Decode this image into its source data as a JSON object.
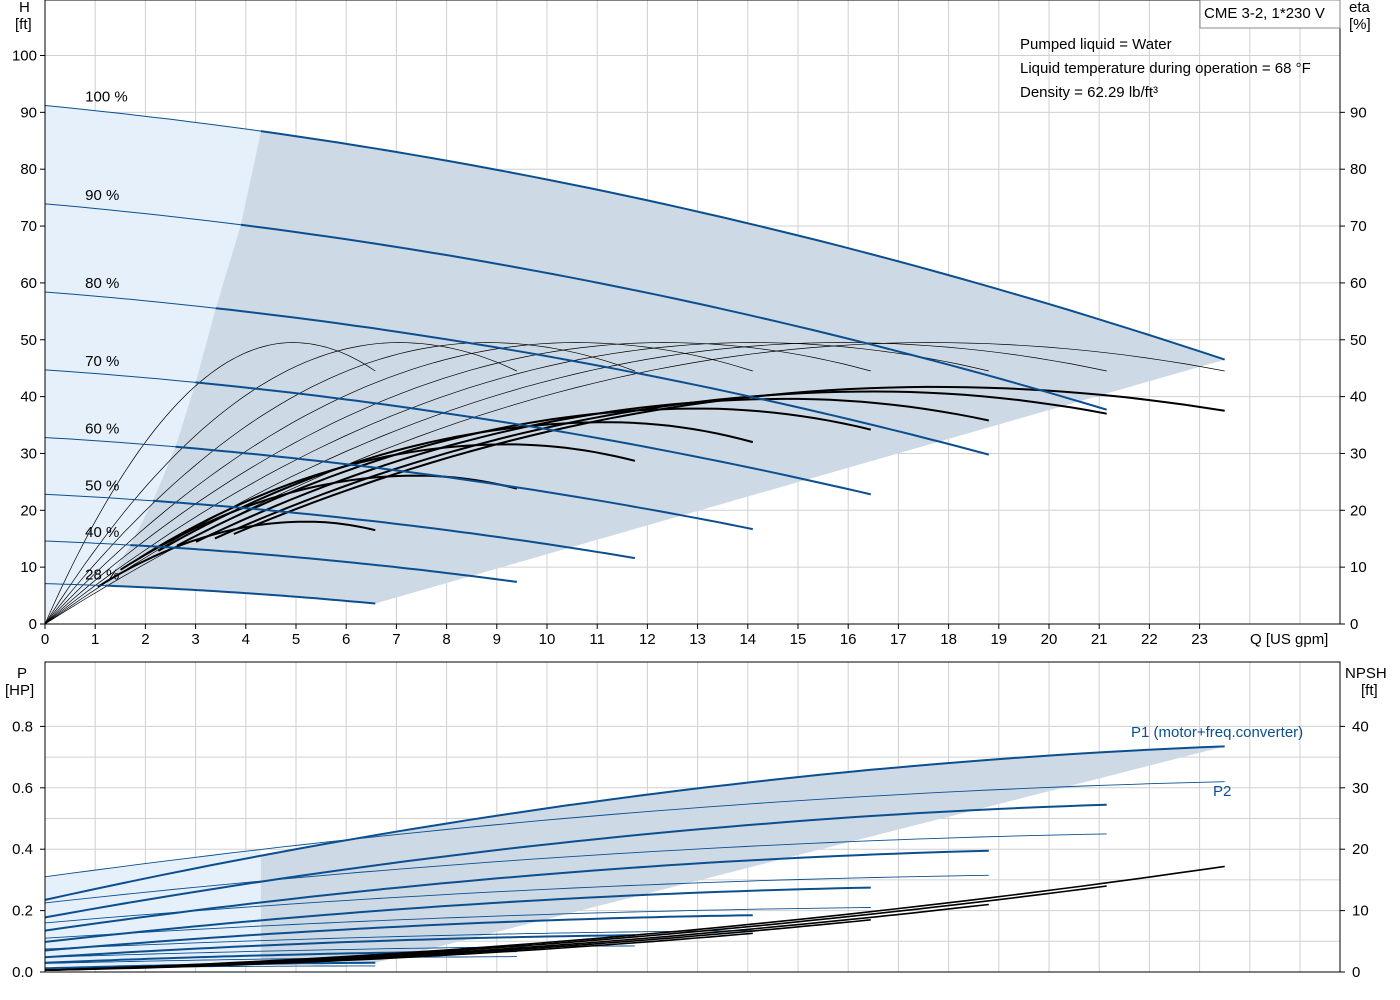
{
  "title_box": "CME 3-2, 1*230 V",
  "info_lines": [
    "Pumped liquid = Water",
    "Liquid temperature during operation = 68 °F",
    "Density = 62.29 lb/ft³"
  ],
  "colors": {
    "curve_blue": "#0b4f8f",
    "band_fill": "#cdd9e5",
    "low_flow_fill": "#e6f0fa",
    "grid": "#d0d0d0"
  },
  "chart_data": [
    {
      "type": "line",
      "panel": "head",
      "x_axis": {
        "label": "Q [US gpm]",
        "range": [
          0,
          25
        ],
        "ticks": [
          0,
          1,
          2,
          3,
          4,
          5,
          6,
          7,
          8,
          9,
          10,
          11,
          12,
          13,
          14,
          15,
          16,
          17,
          18,
          19,
          20,
          21,
          22,
          23
        ]
      },
      "y_axis_left": {
        "label_line1": "H",
        "label_line2": "[ft]",
        "range": [
          0,
          110
        ],
        "ticks": [
          0,
          10,
          20,
          30,
          40,
          50,
          60,
          70,
          80,
          90,
          100
        ]
      },
      "y_axis_right": {
        "label_line1": "eta",
        "label_line2": "[%]",
        "range": [
          0,
          110
        ],
        "ticks": [
          0,
          10,
          20,
          30,
          40,
          50,
          60,
          70,
          80,
          90
        ]
      },
      "grid": true,
      "head_curves": [
        {
          "label": "100 %",
          "q_max": 23.5,
          "h0": 91.2,
          "h_end": 46.5,
          "q_split": 4.3
        },
        {
          "label": "90 %",
          "q_max": 21.15,
          "h0": 73.9,
          "h_end": 37.7,
          "q_split": 3.9
        },
        {
          "label": "80 %",
          "q_max": 18.8,
          "h0": 58.4,
          "h_end": 29.8,
          "q_split": 3.4
        },
        {
          "label": "70 %",
          "q_max": 16.45,
          "h0": 44.7,
          "h_end": 22.8,
          "q_split": 3.0
        },
        {
          "label": "60 %",
          "q_max": 14.1,
          "h0": 32.8,
          "h_end": 16.7,
          "q_split": 2.6
        },
        {
          "label": "50 %",
          "q_max": 11.75,
          "h0": 22.8,
          "h_end": 11.6,
          "q_split": 2.15
        },
        {
          "label": "40 %",
          "q_max": 9.4,
          "h0": 14.6,
          "h_end": 7.4,
          "q_split": 1.7
        },
        {
          "label": "28 %",
          "q_max": 6.58,
          "h0": 7.1,
          "h_end": 3.6,
          "q_split": 1.2
        }
      ],
      "efficiency_curves": {
        "peak_eta": 49.5,
        "peak_at_fraction": 0.75,
        "end_eta": 44.5
      },
      "duty_efficiency_curves": [
        {
          "q_end": 6.58,
          "eta_peak": 18.0,
          "eta_end": 16.5,
          "q_peak": 5.2
        },
        {
          "q_end": 9.4,
          "eta_peak": 26.1,
          "eta_end": 23.8,
          "q_peak": 7.4
        },
        {
          "q_end": 11.75,
          "eta_peak": 31.6,
          "eta_end": 28.7,
          "q_peak": 9.2
        },
        {
          "q_end": 14.1,
          "eta_peak": 35.5,
          "eta_end": 32.0,
          "q_peak": 11.2
        },
        {
          "q_end": 16.45,
          "eta_peak": 37.9,
          "eta_end": 34.2,
          "q_peak": 13.0
        },
        {
          "q_end": 18.8,
          "eta_peak": 39.6,
          "eta_end": 35.8,
          "q_peak": 14.8
        },
        {
          "q_end": 21.15,
          "eta_peak": 40.9,
          "eta_end": 37.0,
          "q_peak": 16.5
        },
        {
          "q_end": 23.5,
          "eta_peak": 41.7,
          "eta_end": 37.5,
          "q_peak": 17.7
        }
      ]
    },
    {
      "type": "line",
      "panel": "power",
      "x_axis": {
        "range": [
          0,
          25
        ]
      },
      "y_axis_left": {
        "label_line1": "P",
        "label_line2": "[HP]",
        "range": [
          0,
          0.85
        ],
        "ticks": [
          "0.0",
          "0.2",
          "0.4",
          "0.6",
          "0.8"
        ]
      },
      "y_axis_right": {
        "label_line1": "NPSH",
        "label_line2": "[ft]",
        "range": [
          0,
          42.5
        ],
        "ticks": [
          0,
          10,
          20,
          30,
          40
        ]
      },
      "grid": true,
      "series_labels": {
        "p1": "P1 (motor+freq.converter)",
        "p2": "P2"
      },
      "p1_curves": [
        {
          "q_max": 23.5,
          "p0": 0.235,
          "p_end": 0.735
        },
        {
          "q_max": 21.15,
          "p0": 0.178,
          "p_end": 0.545
        },
        {
          "q_max": 18.8,
          "p0": 0.135,
          "p_end": 0.395
        },
        {
          "q_max": 16.45,
          "p0": 0.098,
          "p_end": 0.275
        },
        {
          "q_max": 14.1,
          "p0": 0.07,
          "p_end": 0.185
        },
        {
          "q_max": 11.75,
          "p0": 0.048,
          "p_end": 0.12
        },
        {
          "q_max": 9.4,
          "p0": 0.03,
          "p_end": 0.068
        },
        {
          "q_max": 6.58,
          "p0": 0.012,
          "p_end": 0.03
        }
      ],
      "p2_curves": [
        {
          "q_max": 23.5,
          "p0": 0.31,
          "p_end": 0.62
        },
        {
          "q_max": 21.15,
          "p0": 0.225,
          "p_end": 0.45
        },
        {
          "q_max": 18.8,
          "p0": 0.16,
          "p_end": 0.315
        },
        {
          "q_max": 16.45,
          "p0": 0.11,
          "p_end": 0.21
        },
        {
          "q_max": 14.1,
          "p0": 0.075,
          "p_end": 0.135
        },
        {
          "q_max": 11.75,
          "p0": 0.048,
          "p_end": 0.085
        },
        {
          "q_max": 9.4,
          "p0": 0.028,
          "p_end": 0.05
        },
        {
          "q_max": 6.58,
          "p0": 0.012,
          "p_end": 0.02
        }
      ],
      "npsh_curves": [
        {
          "q_start": 0,
          "q_end": 23.5,
          "npsh_start": 0.3,
          "npsh_end": 17.2
        },
        {
          "q_start": 0,
          "q_end": 21.15,
          "npsh_start": 0.3,
          "npsh_end": 14.0
        },
        {
          "q_start": 0,
          "q_end": 18.8,
          "npsh_start": 0.3,
          "npsh_end": 11.0
        },
        {
          "q_start": 0,
          "q_end": 16.45,
          "npsh_start": 0.3,
          "npsh_end": 8.5
        },
        {
          "q_start": 0,
          "q_end": 14.1,
          "npsh_start": 0.3,
          "npsh_end": 6.3
        }
      ]
    }
  ]
}
